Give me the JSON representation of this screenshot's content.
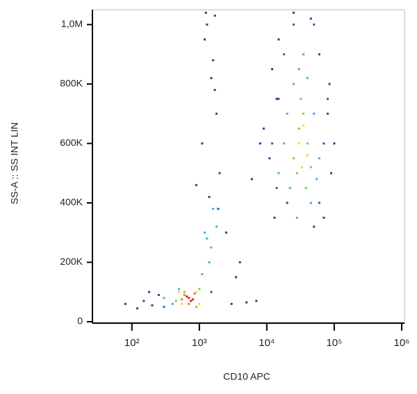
{
  "chart_data": {
    "type": "scatter",
    "x_label": "CD10 APC",
    "y_label": "SS-A :: SS INT LIN",
    "x_scale": "log",
    "xlim": [
      26,
      1100000
    ],
    "xticks": [
      {
        "value": 100,
        "label": "10²"
      },
      {
        "value": 1000,
        "label": "10³"
      },
      {
        "value": 10000,
        "label": "10⁴"
      },
      {
        "value": 100000,
        "label": "10⁵"
      },
      {
        "value": 1000000,
        "label": "10⁶"
      }
    ],
    "ylim": [
      0,
      1050000
    ],
    "yticks": [
      0,
      {
        "value": 200000,
        "label": "200K"
      },
      {
        "value": 400000,
        "label": "400K"
      },
      {
        "value": 600000,
        "label": "600K"
      },
      {
        "value": 800000,
        "label": "800K"
      },
      {
        "value": 1000000,
        "label": "1,0M"
      }
    ],
    "series": [
      {
        "color": "#2b3f9e",
        "x": [
          80,
          120,
          150,
          200,
          250,
          180,
          1200,
          1500,
          1800,
          1100,
          1300,
          2000,
          1600,
          900,
          1400,
          1700,
          3000,
          5000,
          7000,
          4000,
          2500,
          6000,
          12000,
          9000,
          15000,
          20000,
          60000,
          80000,
          90000,
          11000,
          13000,
          70000,
          50000,
          100000,
          85000,
          14000,
          25000,
          45000,
          8000,
          3500,
          1250,
          1700
        ],
        "values": [
          60000,
          45000,
          70000,
          55000,
          90000,
          100000,
          950000,
          820000,
          700000,
          600000,
          1000000,
          500000,
          880000,
          460000,
          420000,
          780000,
          60000,
          65000,
          70000,
          200000,
          300000,
          480000,
          850000,
          650000,
          950000,
          400000,
          900000,
          700000,
          500000,
          550000,
          350000,
          350000,
          320000,
          600000,
          800000,
          750000,
          1040000,
          1020000,
          600000,
          150000,
          1040000,
          1030000
        ]
      },
      {
        "color": "#2f5fb8",
        "x": [
          12000,
          15000,
          18000,
          70000,
          80000,
          60000,
          14000,
          25000,
          50000,
          300,
          1500,
          1900
        ],
        "values": [
          600000,
          750000,
          900000,
          600000,
          750000,
          400000,
          450000,
          1000000,
          1000000,
          50000,
          100000,
          380000
        ]
      },
      {
        "color": "#3cb4d8",
        "x": [
          400,
          500,
          1500,
          1200,
          1800,
          1400,
          1600,
          15000,
          20000,
          25000,
          30000,
          40000,
          50000,
          60000,
          18000,
          22000,
          45000,
          35000,
          28000,
          55000,
          1100,
          300,
          1300
        ],
        "values": [
          60000,
          110000,
          250000,
          300000,
          320000,
          200000,
          380000,
          500000,
          700000,
          800000,
          850000,
          820000,
          700000,
          550000,
          600000,
          450000,
          400000,
          900000,
          350000,
          480000,
          160000,
          80000,
          280000
        ]
      },
      {
        "color": "#8cc63e",
        "x": [
          25000,
          30000,
          35000,
          40000,
          28000,
          45000,
          32000,
          38000,
          600,
          900,
          450,
          1000
        ],
        "values": [
          550000,
          650000,
          700000,
          600000,
          500000,
          520000,
          750000,
          450000,
          100000,
          50000,
          70000,
          110000
        ]
      },
      {
        "color": "#f0e020",
        "x": [
          30000,
          35000,
          40000,
          33000,
          500,
          1000,
          550,
          900
        ],
        "values": [
          600000,
          660000,
          560000,
          520000,
          100000,
          60000,
          60000,
          100000
        ]
      },
      {
        "color": "#f08020",
        "x": [
          600,
          850,
          700,
          550
        ],
        "values": [
          90000,
          95000,
          60000,
          75000
        ]
      },
      {
        "color": "#e41a1c",
        "x": [
          700,
          800,
          650,
          750
        ],
        "values": [
          80000,
          75000,
          85000,
          70000
        ]
      }
    ]
  }
}
